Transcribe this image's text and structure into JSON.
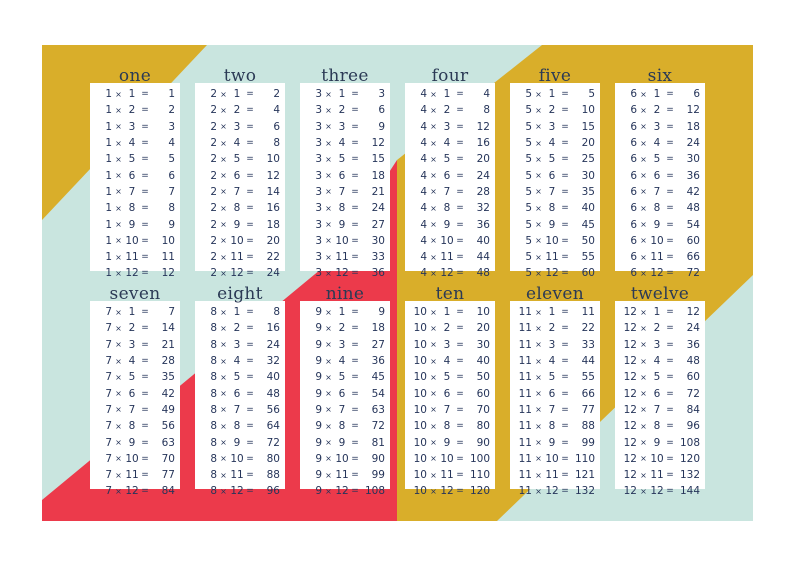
{
  "colors": {
    "mustard": "#d9ae2a",
    "mint": "#c9e5df",
    "red": "#ec3a4b",
    "card": "#ffffff",
    "text": "#26355a"
  },
  "symbols": {
    "times": "×",
    "equals": "="
  },
  "tables": [
    {
      "title": "one",
      "n": 1,
      "rows": [
        [
          1,
          1
        ],
        [
          2,
          2
        ],
        [
          3,
          3
        ],
        [
          4,
          4
        ],
        [
          5,
          5
        ],
        [
          6,
          6
        ],
        [
          7,
          7
        ],
        [
          8,
          8
        ],
        [
          9,
          9
        ],
        [
          10,
          10
        ],
        [
          11,
          11
        ],
        [
          12,
          12
        ]
      ]
    },
    {
      "title": "two",
      "n": 2,
      "rows": [
        [
          1,
          2
        ],
        [
          2,
          4
        ],
        [
          3,
          6
        ],
        [
          4,
          8
        ],
        [
          5,
          10
        ],
        [
          6,
          12
        ],
        [
          7,
          14
        ],
        [
          8,
          16
        ],
        [
          9,
          18
        ],
        [
          10,
          20
        ],
        [
          11,
          22
        ],
        [
          12,
          24
        ]
      ]
    },
    {
      "title": "three",
      "n": 3,
      "rows": [
        [
          1,
          3
        ],
        [
          2,
          6
        ],
        [
          3,
          9
        ],
        [
          4,
          12
        ],
        [
          5,
          15
        ],
        [
          6,
          18
        ],
        [
          7,
          21
        ],
        [
          8,
          24
        ],
        [
          9,
          27
        ],
        [
          10,
          30
        ],
        [
          11,
          33
        ],
        [
          12,
          36
        ]
      ]
    },
    {
      "title": "four",
      "n": 4,
      "rows": [
        [
          1,
          4
        ],
        [
          2,
          8
        ],
        [
          3,
          12
        ],
        [
          4,
          16
        ],
        [
          5,
          20
        ],
        [
          6,
          24
        ],
        [
          7,
          28
        ],
        [
          8,
          32
        ],
        [
          9,
          36
        ],
        [
          10,
          40
        ],
        [
          11,
          44
        ],
        [
          12,
          48
        ]
      ]
    },
    {
      "title": "five",
      "n": 5,
      "rows": [
        [
          1,
          5
        ],
        [
          2,
          10
        ],
        [
          3,
          15
        ],
        [
          4,
          20
        ],
        [
          5,
          25
        ],
        [
          6,
          30
        ],
        [
          7,
          35
        ],
        [
          8,
          40
        ],
        [
          9,
          45
        ],
        [
          10,
          50
        ],
        [
          11,
          55
        ],
        [
          12,
          60
        ]
      ]
    },
    {
      "title": "six",
      "n": 6,
      "rows": [
        [
          1,
          6
        ],
        [
          2,
          12
        ],
        [
          3,
          18
        ],
        [
          4,
          24
        ],
        [
          5,
          30
        ],
        [
          6,
          36
        ],
        [
          7,
          42
        ],
        [
          8,
          48
        ],
        [
          9,
          54
        ],
        [
          10,
          60
        ],
        [
          11,
          66
        ],
        [
          12,
          72
        ]
      ]
    },
    {
      "title": "seven",
      "n": 7,
      "rows": [
        [
          1,
          7
        ],
        [
          2,
          14
        ],
        [
          3,
          21
        ],
        [
          4,
          28
        ],
        [
          5,
          35
        ],
        [
          6,
          42
        ],
        [
          7,
          49
        ],
        [
          8,
          56
        ],
        [
          9,
          63
        ],
        [
          10,
          70
        ],
        [
          11,
          77
        ],
        [
          12,
          84
        ]
      ]
    },
    {
      "title": "eight",
      "n": 8,
      "rows": [
        [
          1,
          8
        ],
        [
          2,
          16
        ],
        [
          3,
          24
        ],
        [
          4,
          32
        ],
        [
          5,
          40
        ],
        [
          6,
          48
        ],
        [
          7,
          56
        ],
        [
          8,
          64
        ],
        [
          9,
          72
        ],
        [
          10,
          80
        ],
        [
          11,
          88
        ],
        [
          12,
          96
        ]
      ]
    },
    {
      "title": "nine",
      "n": 9,
      "rows": [
        [
          1,
          9
        ],
        [
          2,
          18
        ],
        [
          3,
          27
        ],
        [
          4,
          36
        ],
        [
          5,
          45
        ],
        [
          6,
          54
        ],
        [
          7,
          63
        ],
        [
          8,
          72
        ],
        [
          9,
          81
        ],
        [
          10,
          90
        ],
        [
          11,
          99
        ],
        [
          12,
          108
        ]
      ]
    },
    {
      "title": "ten",
      "n": 10,
      "rows": [
        [
          1,
          10
        ],
        [
          2,
          20
        ],
        [
          3,
          30
        ],
        [
          4,
          40
        ],
        [
          5,
          50
        ],
        [
          6,
          60
        ],
        [
          7,
          70
        ],
        [
          8,
          80
        ],
        [
          9,
          90
        ],
        [
          10,
          100
        ],
        [
          11,
          110
        ],
        [
          12,
          120
        ]
      ]
    },
    {
      "title": "eleven",
      "n": 11,
      "rows": [
        [
          1,
          11
        ],
        [
          2,
          22
        ],
        [
          3,
          33
        ],
        [
          4,
          44
        ],
        [
          5,
          55
        ],
        [
          6,
          66
        ],
        [
          7,
          77
        ],
        [
          8,
          88
        ],
        [
          9,
          99
        ],
        [
          10,
          110
        ],
        [
          11,
          121
        ],
        [
          12,
          132
        ]
      ]
    },
    {
      "title": "twelve",
      "n": 12,
      "rows": [
        [
          1,
          12
        ],
        [
          2,
          24
        ],
        [
          3,
          36
        ],
        [
          4,
          48
        ],
        [
          5,
          60
        ],
        [
          6,
          72
        ],
        [
          7,
          84
        ],
        [
          8,
          96
        ],
        [
          9,
          108
        ],
        [
          10,
          120
        ],
        [
          11,
          132
        ],
        [
          12,
          144
        ]
      ]
    }
  ]
}
